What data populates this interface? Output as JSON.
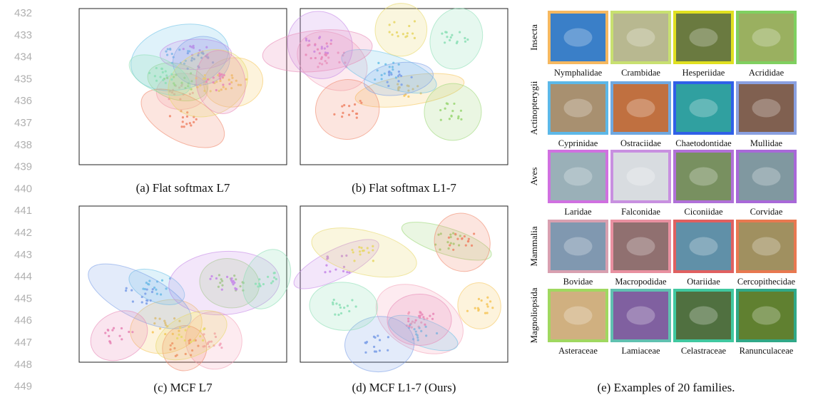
{
  "line_numbers": [
    "432",
    "433",
    "434",
    "435",
    "436",
    "437",
    "438",
    "439",
    "440",
    "441",
    "442",
    "443",
    "444",
    "445",
    "446",
    "447",
    "448",
    "449"
  ],
  "panels": [
    {
      "caption": "(a) Flat softmax L7"
    },
    {
      "caption": "(b) Flat softmax L1-7"
    },
    {
      "caption": "(c) MCF L7"
    },
    {
      "caption": "(d) MCF L1-7 (Ours)"
    }
  ],
  "examples": {
    "caption": "(e) Examples of 20 families.",
    "groups": [
      {
        "label": "Insecta",
        "families": [
          "Nymphalidae",
          "Crambidae",
          "Hesperiidae",
          "Acrididae"
        ]
      },
      {
        "label": "Actinopterygii",
        "families": [
          "Cyprinidae",
          "Ostraciidae",
          "Chaetodontidae",
          "Mullidae"
        ]
      },
      {
        "label": "Aves",
        "families": [
          "Laridae",
          "Falconidae",
          "Ciconiidae",
          "Corvidae"
        ]
      },
      {
        "label": "Mammalia",
        "families": [
          "Bovidae",
          "Macropodidae",
          "Otariidae",
          "Cercopithecidae"
        ]
      },
      {
        "label": "Magnoliopsida",
        "families": [
          "Asteraceae",
          "Lamiaceae",
          "Celastraceae",
          "Ranunculaceae"
        ]
      }
    ]
  }
}
